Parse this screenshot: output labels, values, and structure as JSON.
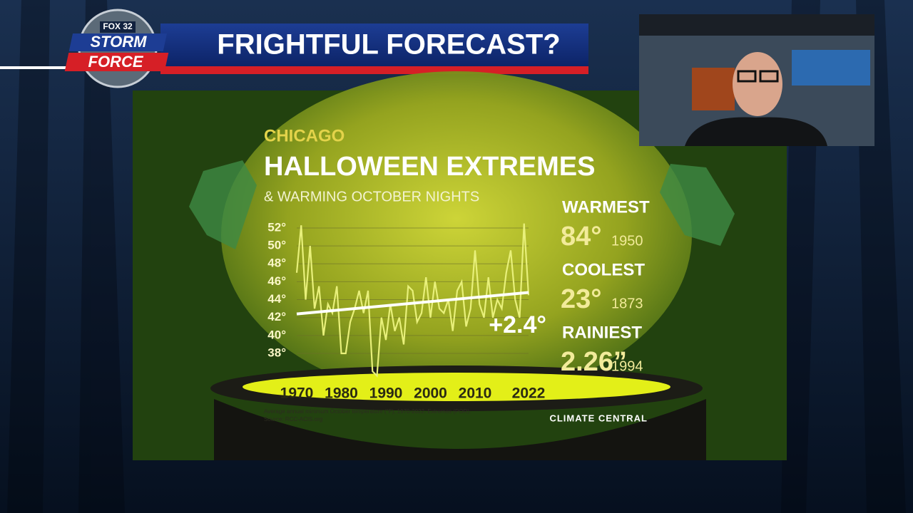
{
  "header": {
    "logo_top": "FOX 32",
    "logo_mid": "STORM",
    "logo_bottom": "FORCE",
    "title": "FRIGHTFUL FORECAST?"
  },
  "chart_data": {
    "type": "line",
    "kicker": "CHICAGO",
    "title": "HALLOWEEN EXTREMES",
    "subtitle": "& WARMING OCTOBER NIGHTS",
    "color": "#e8f07a",
    "x": [
      1970,
      1971,
      1972,
      1973,
      1974,
      1975,
      1976,
      1977,
      1978,
      1979,
      1980,
      1981,
      1982,
      1983,
      1984,
      1985,
      1986,
      1987,
      1988,
      1989,
      1990,
      1991,
      1992,
      1993,
      1994,
      1995,
      1996,
      1997,
      1998,
      1999,
      2000,
      2001,
      2002,
      2003,
      2004,
      2005,
      2006,
      2007,
      2008,
      2009,
      2010,
      2011,
      2012,
      2013,
      2014,
      2015,
      2016,
      2017,
      2018,
      2019,
      2020,
      2021,
      2022
    ],
    "values": [
      47,
      52.3,
      44,
      50,
      43,
      45.5,
      40,
      43.5,
      42.5,
      45.5,
      38,
      38,
      41.5,
      43,
      45,
      42.5,
      45,
      36,
      35.5,
      42,
      39.5,
      43.5,
      40.5,
      42,
      39,
      45.5,
      45,
      41.5,
      42.5,
      46.5,
      42,
      46,
      43,
      42.5,
      44,
      40.5,
      45,
      46,
      41,
      43,
      49.5,
      43.5,
      42,
      46.5,
      42,
      44,
      43,
      47,
      49.5,
      44,
      42,
      52.5,
      44.5
    ],
    "trend": {
      "x": [
        1970,
        2022
      ],
      "values": [
        42.4,
        44.8
      ],
      "color": "#ffffff"
    },
    "annotation": "+2.4°",
    "xlim": [
      1970,
      2022
    ],
    "xticks": [
      1970,
      1980,
      1990,
      2000,
      2010,
      2022
    ],
    "ylim": [
      35,
      53
    ],
    "yticks": [
      {
        "value": 38,
        "label": "38°"
      },
      {
        "value": 40,
        "label": "40°"
      },
      {
        "value": 42,
        "label": "42°"
      },
      {
        "value": 44,
        "label": "44°"
      },
      {
        "value": 46,
        "label": "46°"
      },
      {
        "value": 48,
        "label": "48°"
      },
      {
        "value": 50,
        "label": "50°"
      },
      {
        "value": 52,
        "label": "52°"
      }
    ],
    "grid": true,
    "footnote": "Average annual minimum October temperature (°F), 1970-2022. Extremes (POR).",
    "source": "Source: RCC-ACIS.org",
    "credit": "CLIMATE CENTRAL"
  },
  "extremes": [
    {
      "label": "WARMEST",
      "value": "84°",
      "year": "1950"
    },
    {
      "label": "COOLEST",
      "value": "23°",
      "year": "1873"
    },
    {
      "label": "RAINIEST",
      "value": "2.26”",
      "year": "1994"
    }
  ]
}
